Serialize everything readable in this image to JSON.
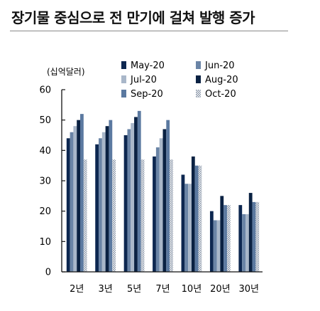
{
  "title": "장기물 중심으로 전 만기에 걸쳐 발행 증가",
  "chart_data": {
    "type": "bar",
    "unit_label": "(십억달러)",
    "categories": [
      "2년",
      "3년",
      "5년",
      "7년",
      "10년",
      "20년",
      "30년"
    ],
    "ylim": [
      0,
      60
    ],
    "yticks": [
      0,
      10,
      20,
      30,
      40,
      50,
      60
    ],
    "legend_position": "top-right",
    "series": [
      {
        "name": "May-20",
        "color": "#0d2750",
        "pattern": "solid",
        "values": [
          44,
          42,
          45,
          38,
          32,
          20,
          22
        ]
      },
      {
        "name": "Jun-20",
        "color": "#6a84a6",
        "pattern": "solid",
        "values": [
          46,
          44,
          47,
          41,
          29,
          17,
          19
        ]
      },
      {
        "name": "Jul-20",
        "color": "#a9b7c9",
        "pattern": "solid",
        "values": [
          48,
          46,
          49,
          44,
          29,
          17,
          19
        ]
      },
      {
        "name": "Aug-20",
        "color": "#0a2142",
        "pattern": "solid",
        "values": [
          50,
          48,
          51,
          47,
          38,
          25,
          26
        ]
      },
      {
        "name": "Sep-20",
        "color": "#5b79a0",
        "pattern": "solid",
        "values": [
          52,
          50,
          53,
          50,
          35,
          22,
          23
        ]
      },
      {
        "name": "Oct-20",
        "color": "#9aa6b6",
        "pattern": "dotted",
        "values": [
          37,
          37,
          37,
          37,
          35,
          22,
          23
        ]
      }
    ]
  }
}
